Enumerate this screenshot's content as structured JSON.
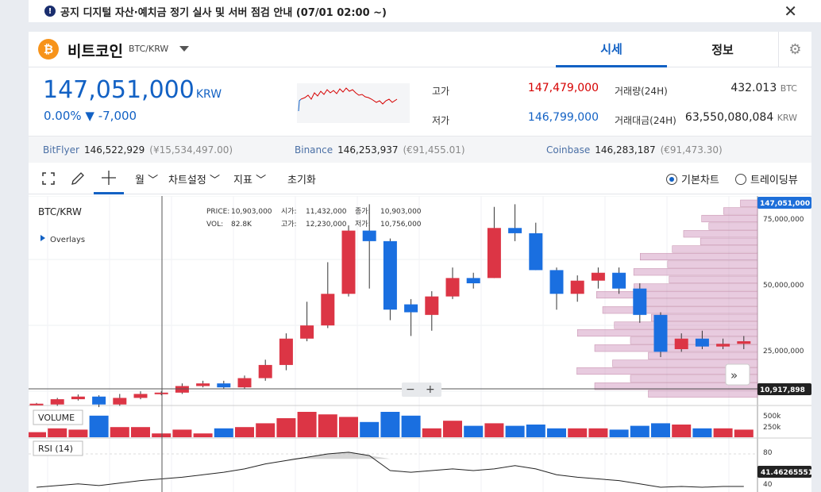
{
  "notice": {
    "icon": "exclamation-icon",
    "text": "공지 디지털 자산·예치금 정기 실사 및 서버 점검 안내 (07/01 02:00 ~)"
  },
  "header": {
    "coin_icon": "bitcoin-icon",
    "coin_symbol": "₿",
    "name": "비트코인",
    "pair": "BTC/KRW",
    "tabs": [
      "시세",
      "정보"
    ],
    "settings_icon": "gear-icon"
  },
  "ticker": {
    "price": "147,051,000",
    "unit": "KRW",
    "change": "0.00% ▼ -7,000",
    "high_label": "고가",
    "high": "147,479,000",
    "low_label": "저가",
    "low": "146,799,000",
    "volume_label": "거래량(24H)",
    "volume": "432.013",
    "volume_unit": "BTC",
    "amount_label": "거래대금(24H)",
    "amount": "63,550,080,084",
    "amount_unit": "KRW"
  },
  "exchanges": [
    {
      "name": "BitFlyer",
      "price": "146,522,929",
      "sub": "(¥15,534,497.00)"
    },
    {
      "name": "Binance",
      "price": "146,253,937",
      "sub": "(€91,455.01)"
    },
    {
      "name": "Coinbase",
      "price": "146,283,187",
      "sub": "(€91,473.30)"
    }
  ],
  "toolbar": {
    "period": "월",
    "chart_settings": "차트설정",
    "indicators": "지표",
    "reset": "초기화",
    "basic_chart": "기본차트",
    "trading_view": "트레이딩뷰"
  },
  "legend": {
    "pair": "BTC/KRW",
    "overlays": "Overlays",
    "price_label": "PRICE:",
    "price": "10,903,000",
    "open_label": "시가:",
    "open": "11,432,000",
    "close_label": "종가:",
    "close": "10,903,000",
    "vol_label": "VOL:",
    "vol": "82.8K",
    "high_label": "고가:",
    "high": "12,230,000",
    "low_label": "저가:",
    "low": "10,756,000"
  },
  "chart_data": {
    "type": "candlestick",
    "y_ticks": [
      "75,000,000",
      "50,000,000",
      "25,000,000"
    ],
    "last_price_label": "147,051,000",
    "cursor_price_label": "10,917,898",
    "candles": [
      {
        "o": 4.0,
        "c": 4.3,
        "h": 4.6,
        "l": 3.8
      },
      {
        "o": 4.0,
        "c": 6.0,
        "h": 6.5,
        "l": 3.5
      },
      {
        "o": 6.0,
        "c": 7.0,
        "h": 7.8,
        "l": 5.5
      },
      {
        "o": 7.0,
        "c": 4.0,
        "h": 7.5,
        "l": 3.0
      },
      {
        "o": 4.0,
        "c": 6.5,
        "h": 8.0,
        "l": 3.5
      },
      {
        "o": 6.5,
        "c": 8.0,
        "h": 9.0,
        "l": 6.0
      },
      {
        "o": 8.0,
        "c": 8.5,
        "h": 9.0,
        "l": 7.5
      },
      {
        "o": 8.5,
        "c": 11.0,
        "h": 12.0,
        "l": 8.0
      },
      {
        "o": 11.0,
        "c": 12.0,
        "h": 13.0,
        "l": 10.5
      },
      {
        "o": 12.0,
        "c": 10.5,
        "h": 13.0,
        "l": 10.0
      },
      {
        "o": 10.5,
        "c": 14.0,
        "h": 15.0,
        "l": 10.0
      },
      {
        "o": 14.0,
        "c": 19.0,
        "h": 21.0,
        "l": 13.0
      },
      {
        "o": 19.0,
        "c": 29.0,
        "h": 31.0,
        "l": 17.0
      },
      {
        "o": 29.0,
        "c": 34.0,
        "h": 43.0,
        "l": 28.0
      },
      {
        "o": 34.0,
        "c": 46.0,
        "h": 58.0,
        "l": 33.0
      },
      {
        "o": 46.0,
        "c": 70.0,
        "h": 72.0,
        "l": 45.0
      },
      {
        "o": 70.0,
        "c": 66.0,
        "h": 80.0,
        "l": 48.0
      },
      {
        "o": 66.0,
        "c": 40.0,
        "h": 67.0,
        "l": 36.0
      },
      {
        "o": 42.0,
        "c": 39.0,
        "h": 44.0,
        "l": 30.0
      },
      {
        "o": 38.0,
        "c": 45.0,
        "h": 47.0,
        "l": 32.0
      },
      {
        "o": 45.0,
        "c": 52.0,
        "h": 56.0,
        "l": 44.0
      },
      {
        "o": 52.0,
        "c": 50.0,
        "h": 54.0,
        "l": 48.0
      },
      {
        "o": 52.0,
        "c": 71.0,
        "h": 79.0,
        "l": 52.0
      },
      {
        "o": 71.0,
        "c": 69.0,
        "h": 80.0,
        "l": 66.0
      },
      {
        "o": 69.0,
        "c": 55.0,
        "h": 73.0,
        "l": 55.0
      },
      {
        "o": 55.0,
        "c": 46.0,
        "h": 56.0,
        "l": 40.0
      },
      {
        "o": 46.0,
        "c": 51.0,
        "h": 53.0,
        "l": 43.0
      },
      {
        "o": 51.0,
        "c": 54.0,
        "h": 56.0,
        "l": 48.0
      },
      {
        "o": 54.0,
        "c": 48.0,
        "h": 56.0,
        "l": 46.0
      },
      {
        "o": 48.0,
        "c": 38.0,
        "h": 50.0,
        "l": 35.0
      },
      {
        "o": 38.0,
        "c": 24.0,
        "h": 39.0,
        "l": 22.0
      },
      {
        "o": 25.0,
        "c": 29.0,
        "h": 31.0,
        "l": 24.0
      },
      {
        "o": 29.0,
        "c": 26.0,
        "h": 32.0,
        "l": 25.0
      },
      {
        "o": 26.0,
        "c": 27.0,
        "h": 29.0,
        "l": 25.0
      },
      {
        "o": 27.0,
        "c": 28.0,
        "h": 30.0,
        "l": 25.0
      }
    ],
    "volume_ticks": [
      "500k",
      "250k"
    ],
    "volume_label": "VOLUME",
    "volumes": [
      0.2,
      0.35,
      0.3,
      0.85,
      0.4,
      0.4,
      0.15,
      0.3,
      0.15,
      0.35,
      0.4,
      0.55,
      0.75,
      1.0,
      0.9,
      0.8,
      0.6,
      1.0,
      0.85,
      0.35,
      0.65,
      0.45,
      0.55,
      0.45,
      0.5,
      0.35,
      0.35,
      0.35,
      0.3,
      0.45,
      0.55,
      0.5,
      0.35,
      0.35,
      0.3
    ],
    "rsi_label": "RSI (14)",
    "rsi_ticks": [
      "80",
      "40"
    ],
    "rsi_value": "41.46265551",
    "rsi": [
      40,
      42,
      44,
      42,
      45,
      48,
      50,
      52,
      55,
      58,
      62,
      68,
      72,
      76,
      80,
      82,
      78,
      60,
      58,
      60,
      62,
      60,
      62,
      66,
      62,
      55,
      52,
      50,
      48,
      44,
      40,
      41,
      40,
      41,
      41
    ]
  }
}
